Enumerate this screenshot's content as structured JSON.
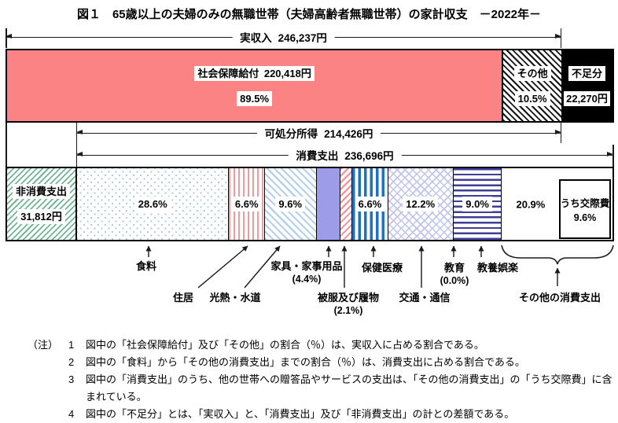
{
  "title": "図１　65歳以上の夫婦のみの無職世帯（夫婦高齢者無職世帯）の家計収支　－2022年－",
  "chart_data": {
    "type": "bar",
    "orientation": "horizontal-stacked",
    "total_income": {
      "name": "実収入",
      "amount": "246,237円"
    },
    "income_segments": [
      {
        "key": "social-security",
        "name": "社会保障給付",
        "amount": "220,418円",
        "pct": 89.5,
        "pattern": "solid-pink"
      },
      {
        "key": "other-income",
        "name": "その他",
        "amount": "",
        "pct": 10.5,
        "pattern": "hatch-black"
      }
    ],
    "shortfall": {
      "name": "不足分",
      "amount": "22,270円",
      "pattern": "solid-black"
    },
    "disposable_income": {
      "name": "可処分所得",
      "amount": "214,426円"
    },
    "consumption_total": {
      "name": "消費支出",
      "amount": "236,696円"
    },
    "non_consumption": {
      "name": "非消費支出",
      "amount": "31,812円",
      "pattern": "hatch-green"
    },
    "consumption_segments": [
      {
        "key": "food",
        "name": "食料",
        "pct": 28.6,
        "pattern": "dots-blue",
        "pct_inside": true
      },
      {
        "key": "housing",
        "name": "住居",
        "pct": 6.6,
        "pattern": "vstripe-pink",
        "pct_inside": true
      },
      {
        "key": "utilities",
        "name": "光熱・水道",
        "pct": 9.6,
        "pattern": "diag-blue",
        "pct_inside": true
      },
      {
        "key": "furniture",
        "name": "家具・家事用品",
        "pct": 4.4,
        "pattern": "solid-purple",
        "pct_inside": false
      },
      {
        "key": "clothing",
        "name": "被服及び履物",
        "pct": 2.1,
        "pattern": "diag-pink",
        "pct_inside": false
      },
      {
        "key": "medical",
        "name": "保健医療",
        "pct": 6.6,
        "pattern": "vstripe-blue",
        "pct_inside": true
      },
      {
        "key": "transport",
        "name": "交通・通信",
        "pct": 12.2,
        "pattern": "lattice-purple",
        "pct_inside": true
      },
      {
        "key": "education",
        "name": "教育",
        "pct": 0.0,
        "pattern": "none",
        "pct_inside": false
      },
      {
        "key": "recreation",
        "name": "教養娯楽",
        "pct": 9.0,
        "pattern": "hstripe-blue",
        "pct_inside": true
      },
      {
        "key": "other-consumption",
        "name": "その他の消費支出",
        "pct": 20.9,
        "pattern": "white",
        "pct_inside": true
      }
    ],
    "kousaihi": {
      "label": "うち交際費",
      "pct_label": "9.6%"
    },
    "colors": {
      "pink": "#FC8383",
      "hatch_green": "#6FB794",
      "dot_blue": "#A9C7E5",
      "stripe_pink": "#F1999D",
      "purple": "#9C9CE8",
      "stripe_blue": "#1D72C2",
      "lattice_purple": "#C0C3EC",
      "dark_blue": "#3F3F9A",
      "black": "#000000"
    }
  },
  "notes": {
    "heading": "（注）",
    "items": [
      {
        "num": "1",
        "text": "図中の「社会保障給付」及び「その他」の割合（％）は、実収入に占める割合である。"
      },
      {
        "num": "2",
        "text": "図中の「食料」から「その他の消費支出」までの割合（％）は、消費支出に占める割合である。"
      },
      {
        "num": "3",
        "text": "図中の「消費支出」のうち、他の世帯への贈答品やサービスの支出は、「その他の消費支出」の「うち交際費」に含まれている。"
      },
      {
        "num": "4",
        "text": "図中の「不足分」とは、「実収入」と、「消費支出」及び「非消費支出」の計との差額である。"
      }
    ]
  }
}
